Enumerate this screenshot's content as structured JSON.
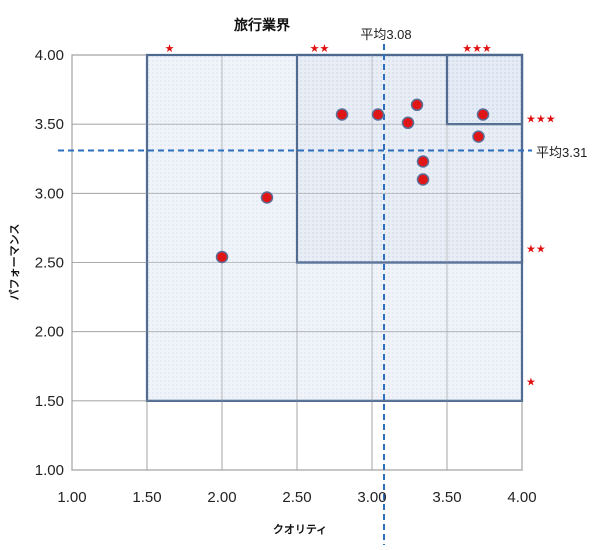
{
  "chart_data": {
    "type": "scatter",
    "title": "旅行業界",
    "xlabel": "クオリティ",
    "ylabel": "パフォーマンス",
    "xlim": [
      1.0,
      4.0
    ],
    "ylim": [
      1.0,
      4.0
    ],
    "x_ticks": [
      "1.00",
      "1.50",
      "2.00",
      "2.50",
      "3.00",
      "3.50",
      "4.00"
    ],
    "y_ticks": [
      "1.00",
      "1.50",
      "2.00",
      "2.50",
      "3.00",
      "3.50",
      "4.00"
    ],
    "grid": true,
    "points": [
      {
        "x": 2.0,
        "y": 2.54
      },
      {
        "x": 2.3,
        "y": 2.97
      },
      {
        "x": 2.8,
        "y": 3.57
      },
      {
        "x": 3.04,
        "y": 3.57
      },
      {
        "x": 3.24,
        "y": 3.51
      },
      {
        "x": 3.3,
        "y": 3.64
      },
      {
        "x": 3.34,
        "y": 3.23
      },
      {
        "x": 3.34,
        "y": 3.1
      },
      {
        "x": 3.71,
        "y": 3.41
      },
      {
        "x": 3.74,
        "y": 3.57
      }
    ],
    "averages": {
      "x": {
        "value": 3.08,
        "label": "平均3.08"
      },
      "y": {
        "value": 3.31,
        "label": "平均3.31"
      }
    },
    "zones": [
      {
        "x0": 1.5,
        "x1": 4.0,
        "y0": 1.5,
        "y1": 4.0
      },
      {
        "x0": 2.5,
        "x1": 4.0,
        "y0": 2.5,
        "y1": 4.0
      },
      {
        "x0": 3.5,
        "x1": 4.0,
        "y0": 3.5,
        "y1": 4.0
      }
    ],
    "star_labels": {
      "top": [
        {
          "x": 1.65,
          "text": "★"
        },
        {
          "x": 2.65,
          "text": "★★"
        },
        {
          "x": 3.7,
          "text": "★★★"
        }
      ],
      "right": [
        {
          "y": 3.54,
          "text": "★★★"
        },
        {
          "y": 2.6,
          "text": "★★"
        },
        {
          "y": 1.64,
          "text": "★"
        }
      ]
    },
    "colors": {
      "zone_fill": "#d9e3f1",
      "zone_stroke": "#3e5f8f",
      "point_fill": "#e01515",
      "point_stroke": "#5a6f9a",
      "avg_line": "#2e6fbd",
      "grid": "#9a9a9a",
      "star": "#e01010"
    }
  }
}
